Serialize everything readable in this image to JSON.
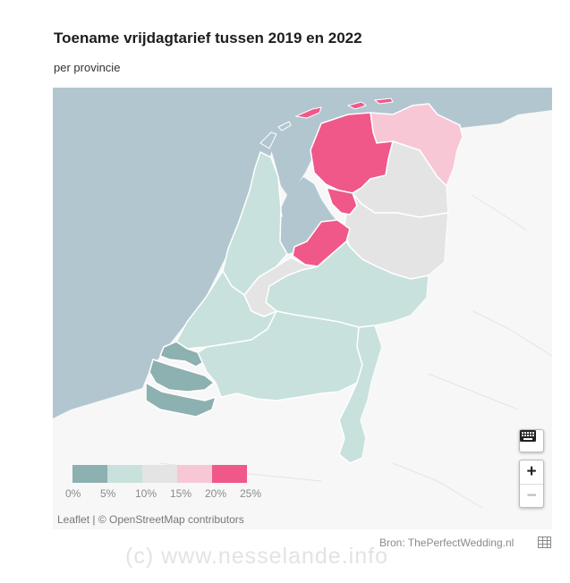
{
  "title": "Toename vrijdagtarief tussen 2019 en 2022",
  "subtitle": "per provincie",
  "legend": {
    "colors": [
      "#8db0b0",
      "#c8e1dc",
      "#e4e4e4",
      "#f7c7d5",
      "#f0588a"
    ],
    "labels": [
      "0%",
      "5%",
      "10%",
      "15%",
      "20%",
      "25%"
    ]
  },
  "provinces": [
    {
      "name": "Groningen",
      "class": "15-20%",
      "color": "#f7c7d5"
    },
    {
      "name": "Friesland",
      "class": "20-25%",
      "color": "#f0588a"
    },
    {
      "name": "Drenthe",
      "class": "10-15%",
      "color": "#e4e4e4"
    },
    {
      "name": "Overijssel",
      "class": "10-15%",
      "color": "#e4e4e4"
    },
    {
      "name": "Flevoland",
      "class": "20-25%",
      "color": "#f0588a"
    },
    {
      "name": "Gelderland",
      "class": "5-10%",
      "color": "#c8e1dc"
    },
    {
      "name": "Utrecht",
      "class": "10-15%",
      "color": "#e4e4e4"
    },
    {
      "name": "Noord-Holland",
      "class": "5-10%",
      "color": "#c8e1dc"
    },
    {
      "name": "Zuid-Holland",
      "class": "5-10%",
      "color": "#c8e1dc"
    },
    {
      "name": "Zeeland",
      "class": "0-5%",
      "color": "#8db0b0"
    },
    {
      "name": "Noord-Brabant",
      "class": "5-10%",
      "color": "#c8e1dc"
    },
    {
      "name": "Limburg",
      "class": "5-10%",
      "color": "#c8e1dc"
    }
  ],
  "colors": {
    "water": "#b2c6d0",
    "land": "#f7f7f7",
    "border": "#ffffff"
  },
  "attribution": "Leaflet | © OpenStreetMap contributors",
  "controls": {
    "zoom_in": "+",
    "zoom_out": "−",
    "keyboard_icon": "keyboard-icon"
  },
  "source": "Bron: ThePerfectWedding.nl",
  "watermark": "(c)  www.nesselande.info"
}
